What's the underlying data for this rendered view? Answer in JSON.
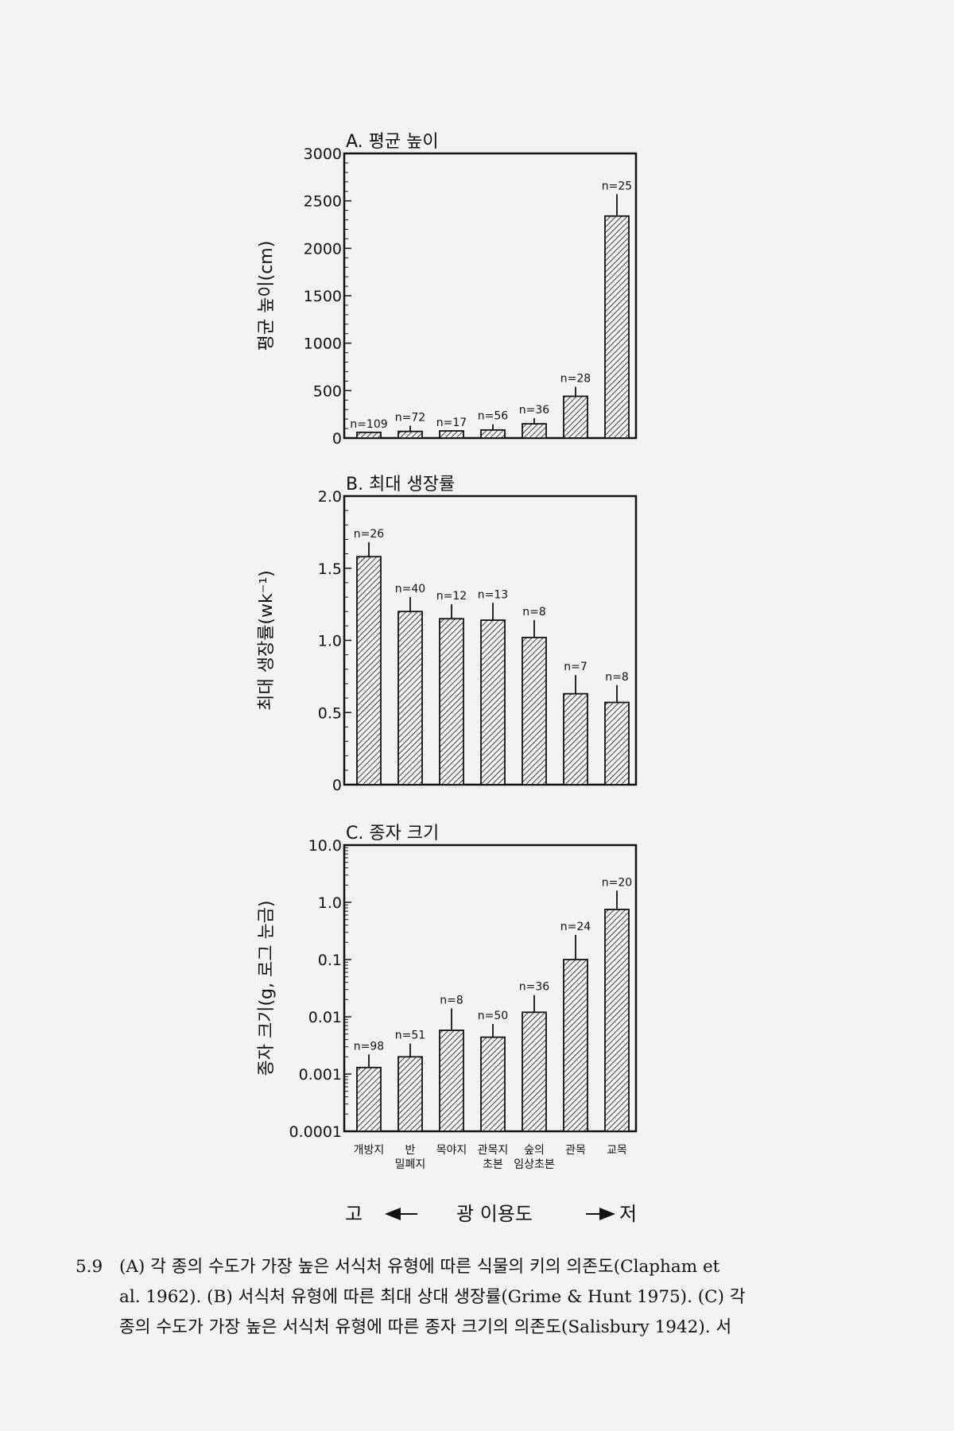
{
  "chart_data": [
    {
      "type": "bar",
      "title": "A. 평균 높이",
      "ylabel": "평균 높이(cm)",
      "ylim": [
        0,
        3000
      ],
      "yticks": [
        0,
        500,
        1000,
        1500,
        2000,
        2500,
        3000
      ],
      "yticklabels": [
        "0",
        "500",
        "1000",
        "1500",
        "2000",
        "2500",
        "3000"
      ],
      "minor_ticks": true,
      "categories": [
        "개방지",
        "반 밀폐지",
        "목야지",
        "관목지 초본",
        "숲의 임상초본",
        "관목",
        "교목"
      ],
      "values": [
        60,
        70,
        75,
        85,
        150,
        440,
        2340
      ],
      "error": [
        0,
        60,
        0,
        60,
        60,
        100,
        230
      ],
      "n_labels": [
        "n=109",
        "n=72",
        "n=17",
        "n=56",
        "n=36",
        "n=28",
        "n=25"
      ]
    },
    {
      "type": "bar",
      "title": "B. 최대 생장률",
      "ylabel": "최대 생장률(wk⁻¹)",
      "ylim": [
        0,
        2.0
      ],
      "yticks": [
        0,
        0.5,
        1.0,
        1.5,
        2.0
      ],
      "yticklabels": [
        "0",
        "0.5",
        "1.0",
        "1.5",
        "2.0"
      ],
      "minor_ticks": true,
      "categories": [
        "개방지",
        "반 밀폐지",
        "목야지",
        "관목지 초본",
        "숲의 임상초본",
        "관목",
        "교목"
      ],
      "values": [
        1.58,
        1.2,
        1.15,
        1.14,
        1.02,
        0.63,
        0.57
      ],
      "error": [
        0.1,
        0.1,
        0.1,
        0.12,
        0.12,
        0.13,
        0.12
      ],
      "n_labels": [
        "n=26",
        "n=40",
        "n=12",
        "n=13",
        "n=8",
        "n=7",
        "n=8"
      ]
    },
    {
      "type": "bar",
      "title": "C. 종자 크기",
      "ylabel": "종자 크기(g, 로그 눈금)",
      "yscale": "log",
      "ylim": [
        0.0001,
        10.0
      ],
      "yticks": [
        0.0001,
        0.001,
        0.01,
        0.1,
        1.0,
        10.0
      ],
      "yticklabels": [
        "0.0001",
        "0.001",
        "0.01",
        "0.1",
        "1.0",
        "10.0"
      ],
      "minor_ticks": true,
      "categories": [
        "개방지",
        "반 밀폐지",
        "목야지",
        "관목지 초본",
        "숲의 임상초본",
        "관목",
        "교목"
      ],
      "values": [
        0.0013,
        0.002,
        0.0058,
        0.0044,
        0.012,
        0.1,
        0.75
      ],
      "error_hi": [
        0.0022,
        0.0034,
        0.014,
        0.0075,
        0.024,
        0.27,
        1.6
      ],
      "n_labels": [
        "n=98",
        "n=51",
        "n=8",
        "n=50",
        "n=36",
        "n=24",
        "n=20"
      ]
    }
  ],
  "xaxis": {
    "category_lines": [
      [
        "개방지"
      ],
      [
        "반",
        "밀폐지"
      ],
      [
        "목야지"
      ],
      [
        "관목지",
        "초본"
      ],
      [
        "숲의",
        "임상초본"
      ],
      [
        "관목"
      ],
      [
        "교목"
      ]
    ],
    "arrow_left": "고",
    "arrow_label": "광 이용도",
    "arrow_right": "저"
  },
  "caption": {
    "number": "5.9",
    "lines": [
      "(A) 각 종의 수도가 가장 높은 서식처 유형에 따른 식물의 키의 의존도(Clapham et",
      "al. 1962). (B) 서식처 유형에 따른 최대 상대 생장률(Grime & Hunt 1975). (C) 각",
      "종의 수도가 가장 높은 서식처 유형에 따른 종자 크기의 의존도(Salisbury 1942). 서"
    ]
  },
  "colors": {
    "ink": "#111111",
    "background": "#f4f3f1",
    "hatch": "#111111"
  }
}
